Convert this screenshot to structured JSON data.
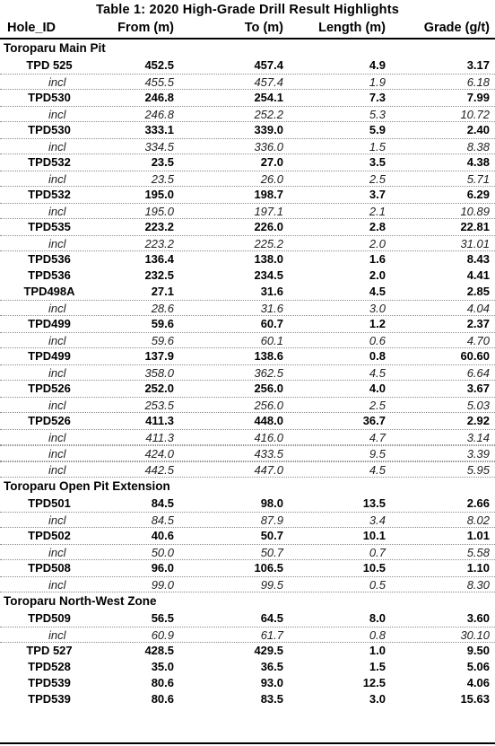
{
  "title": "Table 1: 2020 High-Grade Drill Result Highlights",
  "columns": [
    "Hole_ID",
    "From (m)",
    "To (m)",
    "Length (m)",
    "Grade (g/t)"
  ],
  "rows": [
    {
      "kind": "section",
      "label": "Toroparu Main Pit"
    },
    {
      "kind": "hole",
      "cells": [
        "TPD 525",
        "452.5",
        "457.4",
        "4.9",
        "3.17"
      ]
    },
    {
      "kind": "incl",
      "cells": [
        "incl",
        "455.5",
        "457.4",
        "1.9",
        "6.18"
      ]
    },
    {
      "kind": "hole",
      "cells": [
        "TPD530",
        "246.8",
        "254.1",
        "7.3",
        "7.99"
      ]
    },
    {
      "kind": "incl",
      "cells": [
        "incl",
        "246.8",
        "252.2",
        "5.3",
        "10.72"
      ]
    },
    {
      "kind": "hole",
      "cells": [
        "TPD530",
        "333.1",
        "339.0",
        "5.9",
        "2.40"
      ]
    },
    {
      "kind": "incl",
      "cells": [
        "incl",
        "334.5",
        "336.0",
        "1.5",
        "8.38"
      ]
    },
    {
      "kind": "hole",
      "cells": [
        "TPD532",
        "23.5",
        "27.0",
        "3.5",
        "4.38"
      ]
    },
    {
      "kind": "incl",
      "cells": [
        "incl",
        "23.5",
        "26.0",
        "2.5",
        "5.71"
      ]
    },
    {
      "kind": "hole",
      "cells": [
        "TPD532",
        "195.0",
        "198.7",
        "3.7",
        "6.29"
      ]
    },
    {
      "kind": "incl",
      "cells": [
        "incl",
        "195.0",
        "197.1",
        "2.1",
        "10.89"
      ]
    },
    {
      "kind": "hole",
      "cells": [
        "TPD535",
        "223.2",
        "226.0",
        "2.8",
        "22.81"
      ]
    },
    {
      "kind": "incl",
      "cells": [
        "incl",
        "223.2",
        "225.2",
        "2.0",
        "31.01"
      ]
    },
    {
      "kind": "hole",
      "cells": [
        "TPD536",
        "136.4",
        "138.0",
        "1.6",
        "8.43"
      ]
    },
    {
      "kind": "hole",
      "cells": [
        "TPD536",
        "232.5",
        "234.5",
        "2.0",
        "4.41"
      ]
    },
    {
      "kind": "hole",
      "cells": [
        "TPD498A",
        "27.1",
        "31.6",
        "4.5",
        "2.85"
      ]
    },
    {
      "kind": "incl",
      "cells": [
        "incl",
        "28.6",
        "31.6",
        "3.0",
        "4.04"
      ]
    },
    {
      "kind": "hole",
      "cells": [
        "TPD499",
        "59.6",
        "60.7",
        "1.2",
        "2.37"
      ]
    },
    {
      "kind": "incl",
      "cells": [
        "incl",
        "59.6",
        "60.1",
        "0.6",
        "4.70"
      ]
    },
    {
      "kind": "hole",
      "cells": [
        "TPD499",
        "137.9",
        "138.6",
        "0.8",
        "60.60"
      ]
    },
    {
      "kind": "incl",
      "cells": [
        "incl",
        "358.0",
        "362.5",
        "4.5",
        "6.64"
      ]
    },
    {
      "kind": "hole",
      "cells": [
        "TPD526",
        "252.0",
        "256.0",
        "4.0",
        "3.67"
      ]
    },
    {
      "kind": "incl",
      "cells": [
        "incl",
        "253.5",
        "256.0",
        "2.5",
        "5.03"
      ]
    },
    {
      "kind": "hole",
      "cells": [
        "TPD526",
        "411.3",
        "448.0",
        "36.7",
        "2.92"
      ]
    },
    {
      "kind": "incl",
      "cells": [
        "incl",
        "411.3",
        "416.0",
        "4.7",
        "3.14"
      ]
    },
    {
      "kind": "incl",
      "cells": [
        "incl",
        "424.0",
        "433.5",
        "9.5",
        "3.39"
      ]
    },
    {
      "kind": "incl",
      "cells": [
        "incl",
        "442.5",
        "447.0",
        "4.5",
        "5.95"
      ]
    },
    {
      "kind": "section",
      "label": "Toroparu Open Pit Extension"
    },
    {
      "kind": "hole",
      "cells": [
        "TPD501",
        "84.5",
        "98.0",
        "13.5",
        "2.66"
      ]
    },
    {
      "kind": "incl",
      "cells": [
        "incl",
        "84.5",
        "87.9",
        "3.4",
        "8.02"
      ]
    },
    {
      "kind": "hole",
      "cells": [
        "TPD502",
        "40.6",
        "50.7",
        "10.1",
        "1.01"
      ]
    },
    {
      "kind": "incl",
      "cells": [
        "incl",
        "50.0",
        "50.7",
        "0.7",
        "5.58"
      ]
    },
    {
      "kind": "hole",
      "cells": [
        "TPD508",
        "96.0",
        "106.5",
        "10.5",
        "1.10"
      ]
    },
    {
      "kind": "incl",
      "cells": [
        "incl",
        "99.0",
        "99.5",
        "0.5",
        "8.30"
      ]
    },
    {
      "kind": "section",
      "label": "Toroparu North-West Zone"
    },
    {
      "kind": "hole",
      "cells": [
        "TPD509",
        "56.5",
        "64.5",
        "8.0",
        "3.60"
      ]
    },
    {
      "kind": "incl",
      "cells": [
        "incl",
        "60.9",
        "61.7",
        "0.8",
        "30.10"
      ]
    },
    {
      "kind": "hole",
      "cells": [
        "TPD 527",
        "428.5",
        "429.5",
        "1.0",
        "9.50"
      ]
    },
    {
      "kind": "hole",
      "cells": [
        "TPD528",
        "35.0",
        "36.5",
        "1.5",
        "5.06"
      ]
    },
    {
      "kind": "hole",
      "cells": [
        "TPD539",
        "80.6",
        "93.0",
        "12.5",
        "4.06"
      ]
    },
    {
      "kind": "hole",
      "cells": [
        "TPD539",
        "80.6",
        "83.5",
        "3.0",
        "15.63"
      ]
    }
  ]
}
